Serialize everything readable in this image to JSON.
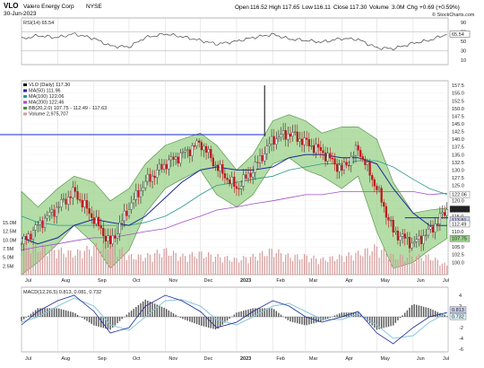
{
  "header": {
    "symbol": "VLO",
    "company": "Valero Energy Corp",
    "exchange": "NYSE",
    "date": "30-Jun-2023",
    "open_label": "Open",
    "open": "116.52",
    "high_label": "High",
    "high": "117.65",
    "low_label": "Low",
    "low": "116.11",
    "close_label": "Close",
    "close": "117.30",
    "volume_label": "Volume",
    "volume": "3.0M",
    "chg_label": "Chg",
    "chg": "+0.69 (+0.59%)",
    "watermark": "© StockCharts.com"
  },
  "colors": {
    "up": "#2f2f2f",
    "down": "#c0141c",
    "band_fill": "#9bd28a",
    "band_line": "#4a8a3c",
    "ma50": "#1a2a9a",
    "ma100": "#2b9a8a",
    "ma200": "#a050c8",
    "rsi": "#444444",
    "macd": "#1a2a9a",
    "signal": "#88c8d8",
    "hist": "#555555",
    "volume": "#d69a9a",
    "hline": "#1a2ad0",
    "grid": "#d6d6d6"
  },
  "chart_data": [
    {
      "type": "line",
      "panel": "rsi",
      "legend": "RSI(14) 65.54",
      "ylim": [
        0,
        100
      ],
      "ticks": [
        10,
        30,
        50,
        65.54,
        70,
        90
      ],
      "levels": [
        30,
        70
      ],
      "last_value": 65.54,
      "x": [
        "2022-07-01",
        "2022-07-15",
        "2022-08-01",
        "2022-08-15",
        "2022-09-01",
        "2022-09-15",
        "2022-10-01",
        "2022-10-15",
        "2022-11-01",
        "2022-11-15",
        "2022-12-01",
        "2022-12-15",
        "2023-01-01",
        "2023-01-15",
        "2023-02-01",
        "2023-02-15",
        "2023-03-01",
        "2023-03-15",
        "2023-04-01",
        "2023-04-15",
        "2023-05-01",
        "2023-05-15",
        "2023-06-01",
        "2023-06-15",
        "2023-06-30"
      ],
      "values": [
        55,
        62,
        58,
        66,
        56,
        40,
        38,
        58,
        66,
        60,
        52,
        44,
        50,
        58,
        65,
        55,
        52,
        48,
        56,
        54,
        36,
        34,
        46,
        52,
        65.54
      ]
    },
    {
      "type": "candlestick",
      "panel": "price",
      "legend": [
        "VLO (Daily) 117.30",
        "MA(50) 111.96",
        "MA(100) 122.06",
        "MA(200) 122.46",
        "BB(20,2.0) 107.75 - 112.49 - 117.63",
        "Volume 2,975,707"
      ],
      "ylim": [
        96,
        159
      ],
      "ticks": [
        100,
        102.5,
        105,
        107.5,
        110,
        112.5,
        115,
        117.5,
        120,
        122.5,
        125,
        127.5,
        130,
        132.5,
        135,
        137.5,
        140,
        142.5,
        145,
        147.5,
        150,
        152.5,
        155,
        157.5
      ],
      "value_labels": [
        "122.06",
        "117.30",
        "113.81",
        "112.49",
        "107.75"
      ],
      "volume_ticks": [
        "2.5M",
        "5.0M",
        "7.5M",
        "10.0M",
        "12.5M",
        "15.0M"
      ],
      "hline": 141.5,
      "x": [
        "2022-07-01",
        "2022-07-15",
        "2022-08-01",
        "2022-08-15",
        "2022-09-01",
        "2022-09-15",
        "2022-10-01",
        "2022-10-15",
        "2022-11-01",
        "2022-11-15",
        "2022-12-01",
        "2022-12-15",
        "2023-01-01",
        "2023-01-15",
        "2023-02-01",
        "2023-02-15",
        "2023-03-01",
        "2023-03-15",
        "2023-04-01",
        "2023-04-15",
        "2023-05-01",
        "2023-05-15",
        "2023-06-01",
        "2023-06-15",
        "2023-06-30"
      ],
      "close": [
        106,
        112,
        118,
        123,
        114,
        106,
        118,
        126,
        132,
        135,
        139,
        131,
        124,
        130,
        140,
        142,
        139,
        136,
        130,
        137,
        124,
        110,
        106,
        110,
        117.3
      ],
      "bb_upper": [
        123,
        118,
        124,
        128,
        126,
        120,
        124,
        132,
        138,
        140,
        142,
        138,
        130,
        135,
        146,
        148,
        146,
        142,
        144,
        144,
        140,
        126,
        116,
        117,
        117.63
      ],
      "bb_lower": [
        96,
        100,
        106,
        112,
        106,
        98,
        104,
        116,
        124,
        127,
        130,
        122,
        118,
        122,
        132,
        134,
        130,
        128,
        124,
        128,
        110,
        98,
        100,
        104,
        107.75
      ],
      "ma50": [
        108,
        106,
        108,
        112,
        114,
        113,
        112,
        115,
        121,
        126,
        130,
        131,
        130,
        130,
        131,
        134,
        135,
        135,
        134,
        134,
        132,
        124,
        116,
        112,
        111.96
      ],
      "ma100": [
        115,
        113,
        112,
        112,
        112,
        112,
        112,
        113,
        115,
        118,
        122,
        125,
        126,
        127,
        128,
        130,
        131,
        132,
        132,
        133,
        133,
        131,
        127,
        124,
        122.06
      ],
      "ma200": [
        104,
        105,
        106,
        107,
        108,
        108,
        109,
        110,
        111,
        113,
        115,
        117,
        118,
        119,
        120,
        121,
        122,
        122,
        123,
        123,
        123,
        123,
        123,
        122,
        122.46
      ],
      "volume_m": [
        10,
        9,
        8,
        7,
        9,
        11,
        6,
        6,
        8,
        6,
        7,
        6,
        5,
        6,
        8,
        6,
        6,
        5,
        6,
        7,
        9,
        6,
        6,
        6,
        3
      ]
    },
    {
      "type": "line",
      "panel": "macd",
      "legend": "MACD(12,26,5) 0.813, 0.081, 0.732",
      "ylim": [
        -6.5,
        5.5
      ],
      "ticks": [
        -6,
        -4,
        -2,
        0,
        2,
        4
      ],
      "value_labels": [
        "0.813",
        "0.732"
      ],
      "x": [
        "2022-07-01",
        "2022-07-15",
        "2022-08-01",
        "2022-08-15",
        "2022-09-01",
        "2022-09-15",
        "2022-10-01",
        "2022-10-15",
        "2022-11-01",
        "2022-11-15",
        "2022-12-01",
        "2022-12-15",
        "2023-01-01",
        "2023-01-15",
        "2023-02-01",
        "2023-02-15",
        "2023-03-01",
        "2023-03-15",
        "2023-04-01",
        "2023-04-15",
        "2023-05-01",
        "2023-05-15",
        "2023-06-01",
        "2023-06-15",
        "2023-06-30"
      ],
      "macd": [
        -1.5,
        1,
        3,
        4,
        1,
        -3,
        -2,
        2,
        4,
        3,
        1,
        -2,
        -1,
        1,
        3,
        2,
        0,
        -1,
        0,
        1,
        -3,
        -5,
        -2,
        0,
        0.813
      ],
      "signal": [
        -1,
        0,
        2,
        3.5,
        2,
        -1.5,
        -2.5,
        0,
        3,
        3.2,
        2,
        -0.5,
        -1.5,
        0,
        2,
        2.5,
        1,
        -0.5,
        -0.5,
        0.5,
        -1.5,
        -4,
        -3.5,
        -1,
        0.732
      ]
    }
  ],
  "x_axis": {
    "months_top": [
      "Jul",
      "Aug",
      "Sep",
      "Oct",
      "Nov",
      "Dec",
      "2023",
      "Feb",
      "Mar",
      "Apr",
      "May",
      "Jun",
      "Jul"
    ],
    "months_bottom": [
      "Jul",
      "Aug",
      "Sep",
      "Oct",
      "Nov",
      "Dec",
      "2023",
      "Feb",
      "Mar",
      "Apr",
      "May",
      "Jun",
      "Jul"
    ]
  }
}
